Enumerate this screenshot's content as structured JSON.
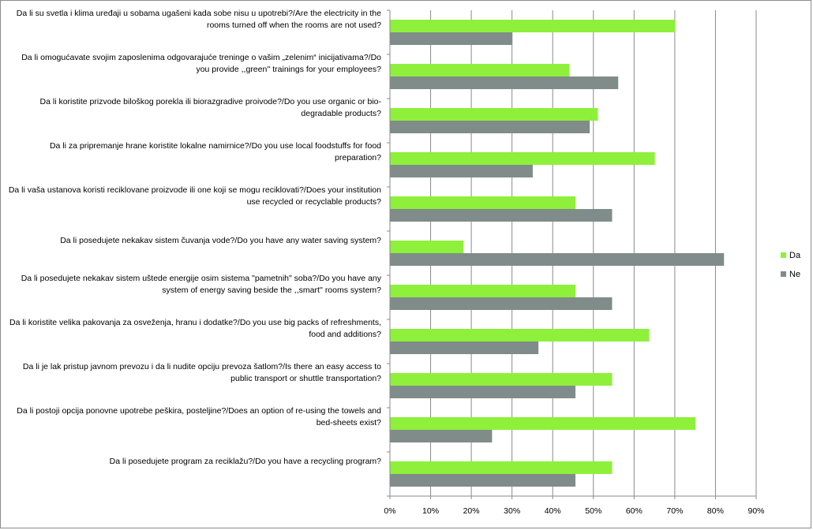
{
  "chart_data": {
    "type": "bar",
    "orientation": "horizontal",
    "title": "",
    "xlabel": "",
    "ylabel": "",
    "categories": [
      "Da li su svetla i klima uređaji u sobama ugašeni kada sobe nisu u upotrebi?/Are the electricity in the rooms turned off when the rooms are not used?",
      "Da li omogućavate svojim zaposlenima odgovarajuće treninge o vašim „zelenim“ inicijativama?/Do you provide ,,green'' trainings for your employees?",
      "Da li koristite prizvode biloškog  porekla ili biorazgradive proivode?/Do you use organic or bio-degradable products?",
      "Da li za pripremanje hrane koristite lokalne namirnice?/Do you use local foodstuffs for food preparation?",
      "Da li vaša ustanova koristi reciklovane proizvode ili one koji se mogu reciklovati?/Does your institution use recycled or recyclable products?",
      "Da li posedujete nekakav sistem čuvanja vode?/Do you have  any water saving system?",
      "Da li posedujete  nekakav sistem uštede energije osim sistema \"pametnih\" soba?/Do you have any system of energy saving beside the ,,smart'' rooms system?",
      "Da li koristite velika pakovanja za osveženja, hranu i dodatke?/Do you use big packs of refreshments, food and additions?",
      "Da li je lak pristup javnom prevozu i da li nudite opciju prevoza šatlom?/Is there an easy access to public transport or shuttle transportation?",
      "Da li postoji opcija ponovne upotrebe peškira, posteljine?/Does an option of re-using the towels  and bed-sheets exist?",
      "Da li posedujete program za reciklažu?/Do you have a recycling program?"
    ],
    "series": [
      {
        "name": "Da",
        "color": "#8ef03a",
        "values": [
          70,
          44,
          51,
          65,
          45.5,
          18,
          45.5,
          63.6,
          54.5,
          75,
          54.5
        ]
      },
      {
        "name": "Ne",
        "color": "#7f8c8a",
        "values": [
          30,
          56,
          49,
          35,
          54.5,
          82,
          54.5,
          36.4,
          45.5,
          25,
          45.5
        ]
      }
    ],
    "xlim": [
      0,
      90
    ],
    "xticks": [
      "0%",
      "10%",
      "20%",
      "30%",
      "40%",
      "50%",
      "60%",
      "70%",
      "80%",
      "90%"
    ],
    "grid": true,
    "legend_position": "right"
  }
}
